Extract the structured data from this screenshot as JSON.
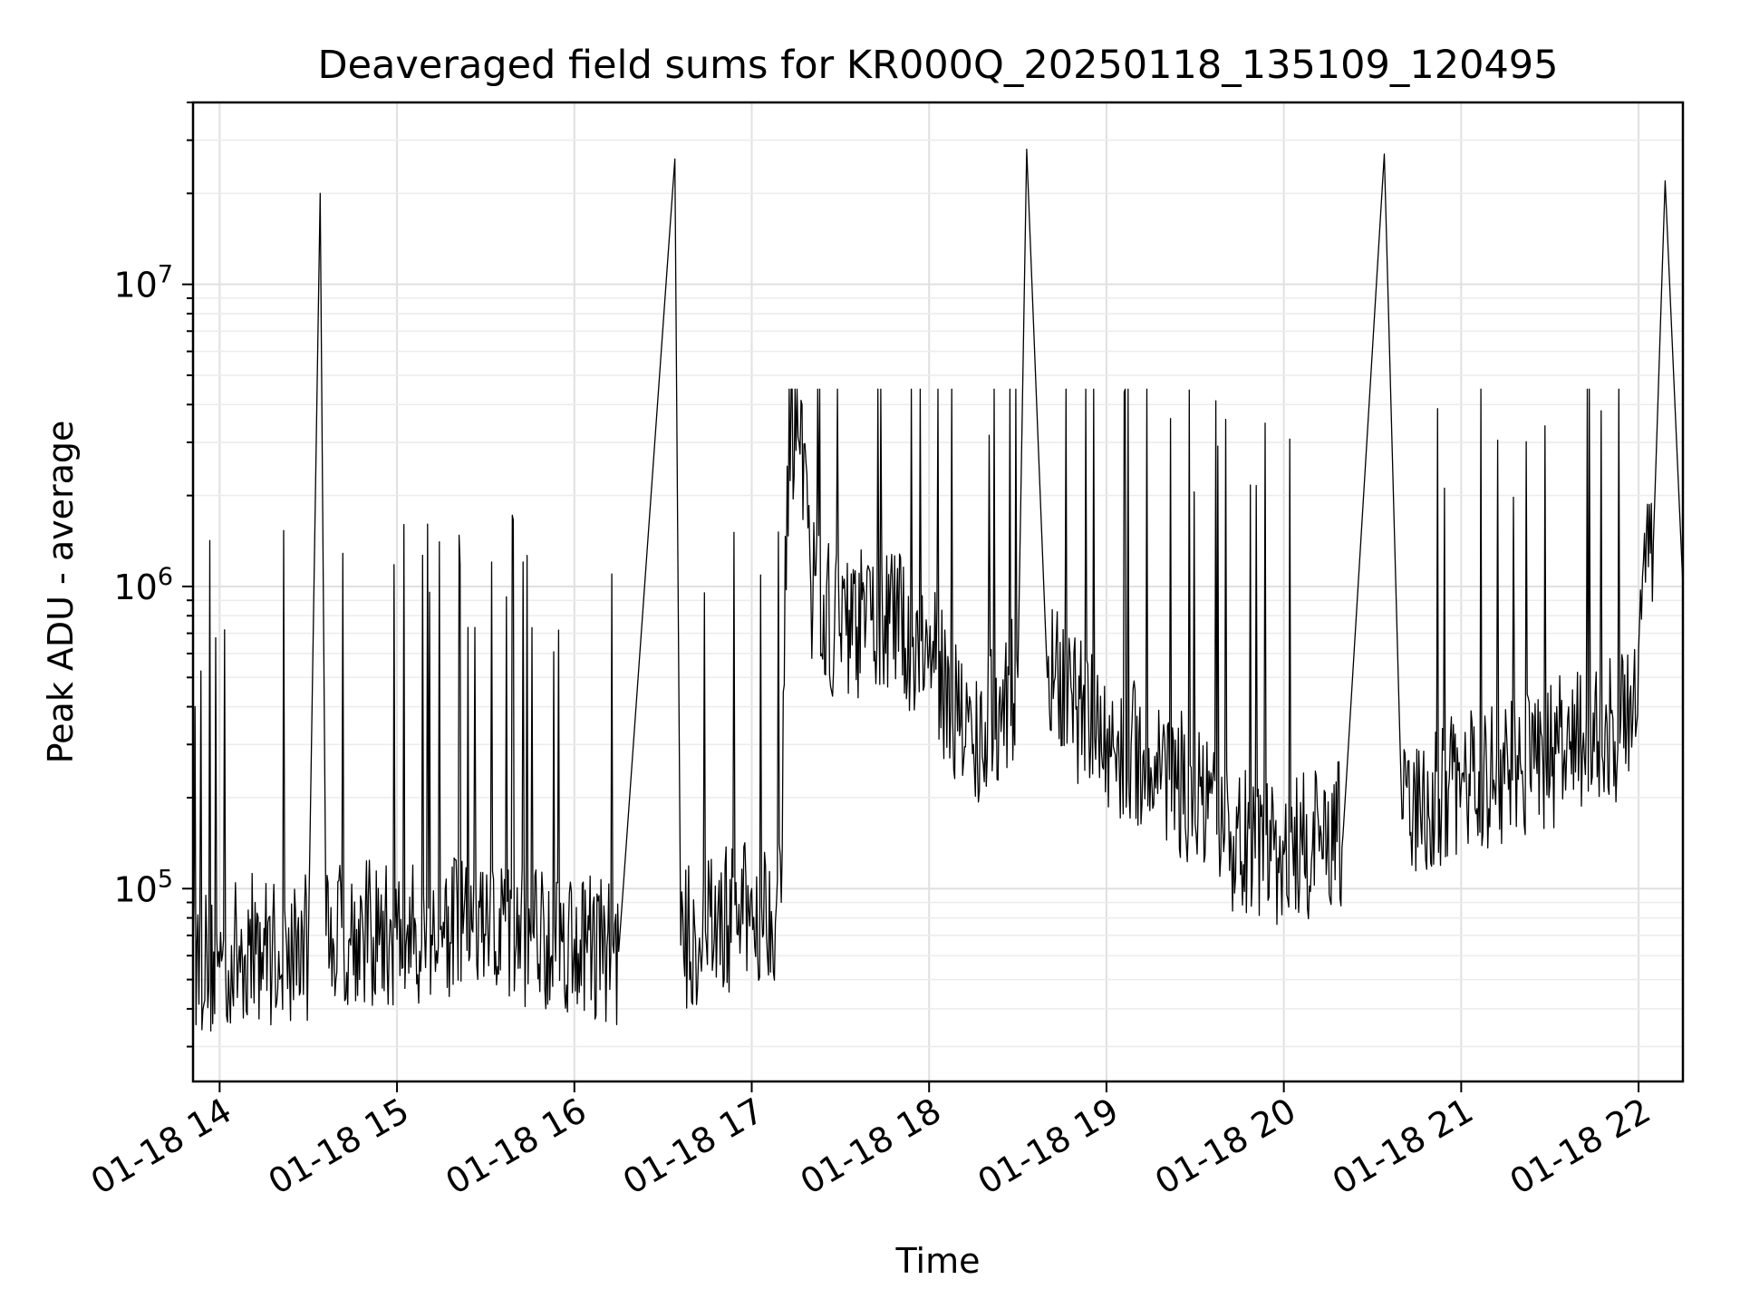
{
  "chart_data": {
    "type": "line",
    "title": "Deaveraged field sums for KR000Q_20250118_135109_120495",
    "xlabel": "Time",
    "ylabel": "Peak ADU - average",
    "yscale": "log",
    "xlim": [
      "2025-01-18T13:51",
      "2025-01-18T22:15"
    ],
    "ylim": [
      23000,
      40000000
    ],
    "x_ticks": [
      {
        "label": "01-18 14",
        "value": "2025-01-18T14:00"
      },
      {
        "label": "01-18 15",
        "value": "2025-01-18T15:00"
      },
      {
        "label": "01-18 16",
        "value": "2025-01-18T16:00"
      },
      {
        "label": "01-18 17",
        "value": "2025-01-18T17:00"
      },
      {
        "label": "01-18 18",
        "value": "2025-01-18T18:00"
      },
      {
        "label": "01-18 19",
        "value": "2025-01-18T19:00"
      },
      {
        "label": "01-18 20",
        "value": "2025-01-18T20:00"
      },
      {
        "label": "01-18 21",
        "value": "2025-01-18T21:00"
      },
      {
        "label": "01-18 22",
        "value": "2025-01-18T22:00"
      }
    ],
    "y_ticks": [
      {
        "base": "10",
        "exp": "5",
        "value": 100000
      },
      {
        "base": "10",
        "exp": "6",
        "value": 1000000
      },
      {
        "base": "10",
        "exp": "7",
        "value": 10000000
      }
    ],
    "grid": true,
    "line_color": "#000000",
    "series": [
      {
        "x": [
          "2025-01-18T13:51",
          "2025-01-18T14:00",
          "2025-01-18T14:10",
          "2025-01-18T14:20",
          "2025-01-18T14:30",
          "2025-01-18T14:34",
          "2025-01-18T14:36",
          "2025-01-18T14:45",
          "2025-01-18T15:00",
          "2025-01-18T15:15",
          "2025-01-18T15:30",
          "2025-01-18T15:45",
          "2025-01-18T16:00",
          "2025-01-18T16:15",
          "2025-01-18T16:34",
          "2025-01-18T16:36",
          "2025-01-18T16:50",
          "2025-01-18T17:10",
          "2025-01-18T17:12",
          "2025-01-18T17:16",
          "2025-01-18T17:20",
          "2025-01-18T17:30",
          "2025-01-18T17:45",
          "2025-01-18T18:00",
          "2025-01-18T18:15",
          "2025-01-18T18:30",
          "2025-01-18T18:33",
          "2025-01-18T18:40",
          "2025-01-18T18:50",
          "2025-01-18T19:00",
          "2025-01-18T19:20",
          "2025-01-18T19:40",
          "2025-01-18T20:00",
          "2025-01-18T20:20",
          "2025-01-18T20:34",
          "2025-01-18T20:40",
          "2025-01-18T21:00",
          "2025-01-18T21:20",
          "2025-01-18T21:40",
          "2025-01-18T21:58",
          "2025-01-18T22:02",
          "2025-01-18T22:05",
          "2025-01-18T22:09",
          "2025-01-18T22:15"
        ],
        "values": [
          60000,
          55000,
          65000,
          62000,
          65000,
          20000000,
          70000,
          72000,
          68000,
          75000,
          70000,
          72000,
          68000,
          62000,
          26000000,
          65000,
          78000,
          90000,
          2500000,
          3000000,
          1000000,
          700000,
          800000,
          600000,
          300000,
          500000,
          28000000,
          500000,
          400000,
          300000,
          250000,
          150000,
          130000,
          150000,
          27000000,
          170000,
          220000,
          260000,
          300000,
          350000,
          1500000,
          1400000,
          22000000,
          1000000
        ]
      }
    ]
  }
}
